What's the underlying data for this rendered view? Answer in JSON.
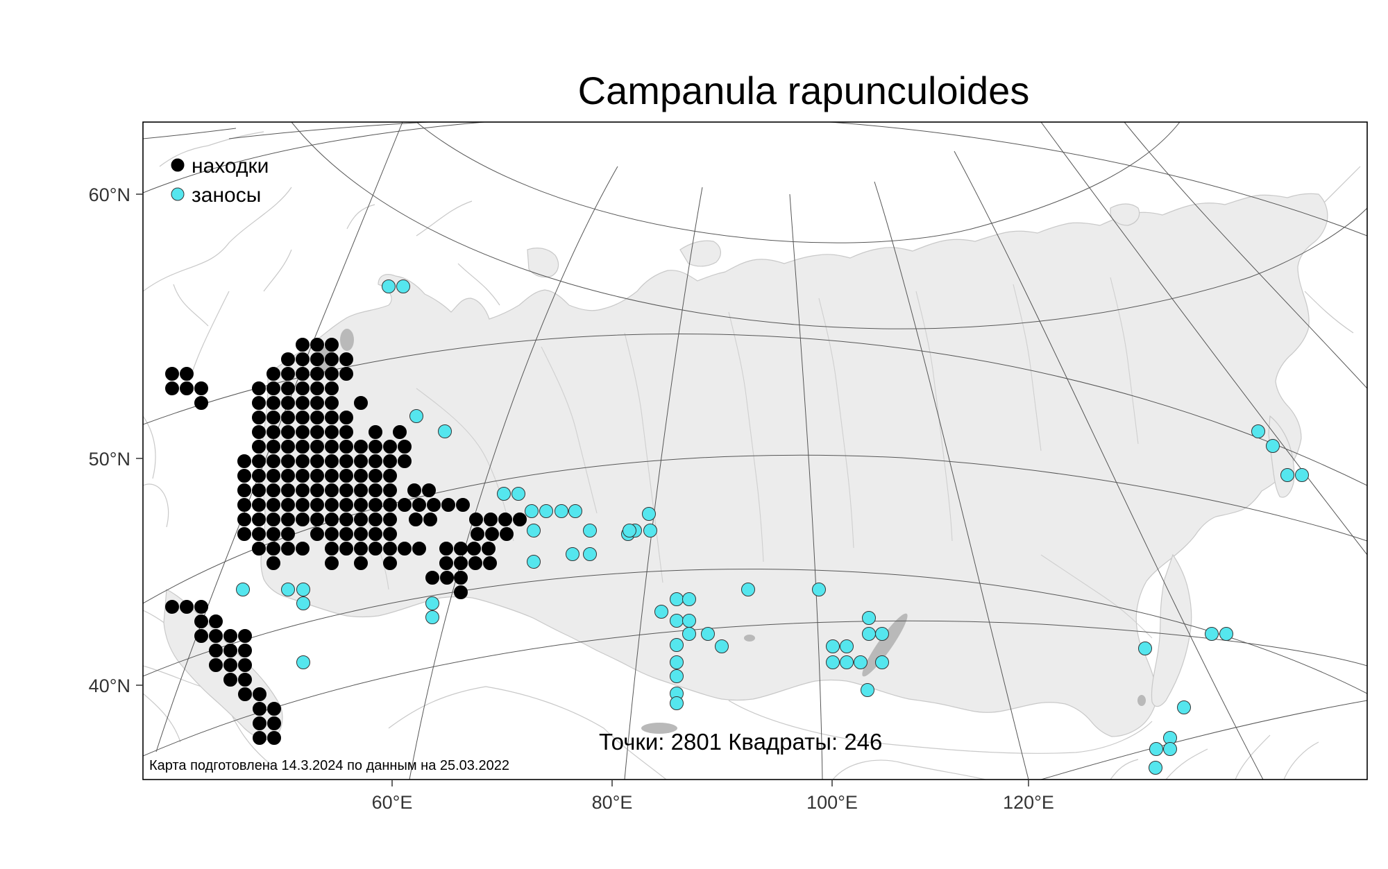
{
  "title": "Campanula rapunculoides",
  "legend": [
    {
      "label": "находки",
      "color": "#000000"
    },
    {
      "label": "заносы",
      "color": "#55e6ee"
    }
  ],
  "stats_text": "Точки: 2801 Квадраты: 246",
  "credit_text": "Карта подготовлена 14.3.2024 по данным на 25.03.2022",
  "axes": {
    "lat_labels": [
      "60°N",
      "50°N",
      "40°N"
    ],
    "lon_labels": [
      "60°E",
      "80°E",
      "100°E",
      "120°E"
    ]
  },
  "colors": {
    "native": "#000000",
    "introduced": "#55e6ee",
    "land": "#ececec",
    "lakes": "#b9b9b9"
  },
  "map_data": {
    "native_cells": [
      [
        252,
        559
      ],
      [
        273,
        538
      ],
      [
        273,
        559
      ],
      [
        294,
        559
      ],
      [
        294,
        580
      ],
      [
        381,
        538
      ],
      [
        381,
        559
      ],
      [
        381,
        580
      ],
      [
        381,
        601
      ],
      [
        381,
        622
      ],
      [
        381,
        643
      ],
      [
        381,
        664
      ],
      [
        381,
        685
      ],
      [
        381,
        706
      ],
      [
        381,
        727
      ],
      [
        381,
        748
      ],
      [
        381,
        769
      ],
      [
        402,
        538
      ],
      [
        402,
        559
      ],
      [
        402,
        580
      ],
      [
        402,
        601
      ],
      [
        402,
        622
      ],
      [
        402,
        643
      ],
      [
        402,
        664
      ],
      [
        402,
        685
      ],
      [
        402,
        706
      ],
      [
        402,
        727
      ],
      [
        402,
        748
      ],
      [
        402,
        769
      ],
      [
        402,
        790
      ],
      [
        423,
        517
      ],
      [
        423,
        538
      ],
      [
        423,
        559
      ],
      [
        423,
        580
      ],
      [
        423,
        601
      ],
      [
        423,
        622
      ],
      [
        423,
        643
      ],
      [
        423,
        664
      ],
      [
        423,
        685
      ],
      [
        423,
        706
      ],
      [
        423,
        727
      ],
      [
        423,
        748
      ],
      [
        423,
        769
      ],
      [
        423,
        790
      ],
      [
        444,
        496
      ],
      [
        444,
        517
      ],
      [
        444,
        538
      ],
      [
        444,
        559
      ],
      [
        444,
        580
      ],
      [
        444,
        601
      ],
      [
        444,
        622
      ],
      [
        444,
        643
      ],
      [
        444,
        664
      ],
      [
        444,
        685
      ],
      [
        444,
        706
      ],
      [
        444,
        727
      ],
      [
        444,
        748
      ],
      [
        465,
        496
      ],
      [
        465,
        517
      ],
      [
        465,
        538
      ],
      [
        465,
        559
      ],
      [
        465,
        580
      ],
      [
        465,
        601
      ],
      [
        465,
        622
      ],
      [
        465,
        643
      ],
      [
        465,
        664
      ],
      [
        465,
        685
      ],
      [
        465,
        706
      ],
      [
        465,
        727
      ],
      [
        465,
        748
      ],
      [
        486,
        517
      ],
      [
        486,
        538
      ],
      [
        486,
        559
      ],
      [
        486,
        580
      ],
      [
        486,
        601
      ],
      [
        486,
        622
      ],
      [
        486,
        643
      ],
      [
        486,
        664
      ],
      [
        486,
        685
      ],
      [
        486,
        706
      ],
      [
        486,
        727
      ],
      [
        486,
        748
      ],
      [
        486,
        769
      ],
      [
        507,
        538
      ],
      [
        507,
        559
      ],
      [
        507,
        580
      ],
      [
        507,
        601
      ],
      [
        507,
        622
      ],
      [
        507,
        643
      ],
      [
        507,
        664
      ],
      [
        507,
        685
      ],
      [
        507,
        706
      ],
      [
        507,
        727
      ],
      [
        507,
        748
      ],
      [
        507,
        769
      ],
      [
        528,
        601
      ],
      [
        528,
        622
      ],
      [
        528,
        643
      ],
      [
        528,
        664
      ],
      [
        528,
        685
      ],
      [
        528,
        706
      ],
      [
        528,
        727
      ],
      [
        528,
        748
      ],
      [
        528,
        769
      ],
      [
        549,
        643
      ],
      [
        549,
        664
      ],
      [
        549,
        685
      ],
      [
        549,
        706
      ],
      [
        549,
        727
      ],
      [
        549,
        748
      ],
      [
        549,
        769
      ],
      [
        549,
        790
      ],
      [
        570,
        643
      ],
      [
        570,
        664
      ],
      [
        570,
        685
      ],
      [
        570,
        706
      ],
      [
        570,
        727
      ],
      [
        570,
        748
      ],
      [
        570,
        769
      ],
      [
        591,
        664
      ],
      [
        591,
        685
      ],
      [
        591,
        706
      ],
      [
        591,
        727
      ],
      [
        591,
        748
      ],
      [
        591,
        769
      ],
      [
        612,
        685
      ],
      [
        612,
        706
      ],
      [
        612,
        727
      ],
      [
        612,
        748
      ],
      [
        612,
        769
      ],
      [
        612,
        790
      ],
      [
        633,
        706
      ],
      [
        633,
        727
      ],
      [
        633,
        748
      ],
      [
        633,
        769
      ],
      [
        655,
        727
      ],
      [
        655,
        748
      ],
      [
        655,
        769
      ],
      [
        655,
        790
      ],
      [
        676,
        790
      ],
      [
        676,
        811
      ],
      [
        676,
        832
      ],
      [
        697,
        769
      ],
      [
        697,
        790
      ],
      [
        697,
        811
      ],
      [
        718,
        727
      ],
      [
        718,
        748
      ],
      [
        718,
        769
      ],
      [
        718,
        790
      ],
      [
        718,
        811
      ],
      [
        739,
        706
      ],
      [
        739,
        727
      ],
      [
        739,
        748
      ],
      [
        739,
        769
      ],
      [
        739,
        790
      ],
      [
        739,
        811
      ],
      [
        760,
        748
      ],
      [
        760,
        769
      ],
      [
        760,
        790
      ],
      [
        760,
        811
      ],
      [
        781,
        727
      ],
      [
        781,
        748
      ],
      [
        802,
        685
      ],
      [
        802,
        706
      ],
      [
        802,
        727
      ],
      [
        802,
        748
      ],
      [
        823,
        706
      ],
      [
        823,
        727
      ],
      [
        823,
        748
      ],
      [
        844,
        727
      ],
      [
        844,
        748
      ],
      [
        865,
        601
      ],
      [
        865,
        622
      ],
      [
        886,
        580
      ],
      [
        886,
        601
      ],
      [
        907,
        643
      ],
      [
        907,
        664
      ],
      [
        907,
        685
      ],
      [
        928,
        643
      ],
      [
        928,
        664
      ],
      [
        949,
        643
      ],
      [
        949,
        664
      ],
      [
        970,
        643
      ],
      [
        970,
        664
      ],
      [
        991,
        643
      ],
      [
        991,
        664
      ],
      [
        1012,
        643
      ],
      [
        1012,
        664
      ],
      [
        1033,
        643
      ],
      [
        1033,
        664
      ],
      [
        1054,
        643
      ],
      [
        1054,
        664
      ],
      [
        1075,
        643
      ],
      [
        1096,
        664
      ],
      [
        1117,
        643
      ],
      [
        1117,
        664
      ],
      [
        1138,
        622
      ],
      [
        1138,
        643
      ],
      [
        1159,
        622
      ],
      [
        1159,
        643
      ],
      [
        1180,
        622
      ],
      [
        1201,
        643
      ]
    ],
    "intro_cells": [
      [
        573,
        419
      ],
      [
        598,
        419
      ],
      [
        602,
        605
      ],
      [
        644,
        630
      ],
      [
        740,
        774
      ],
      [
        742,
        767
      ],
      [
        852,
        770
      ],
      [
        900,
        710
      ],
      [
        945,
        748
      ],
      [
        960,
        786
      ],
      [
        966,
        815
      ],
      [
        988,
        778
      ],
      [
        1000,
        770
      ],
      [
        1018,
        806
      ],
      [
        1036,
        852
      ],
      [
        1055,
        888
      ],
      [
        1084,
        906
      ],
      [
        1116,
        914
      ],
      [
        1141,
        922
      ],
      [
        1160,
        948
      ],
      [
        1176,
        945
      ],
      [
        1186,
        966
      ],
      [
        1196,
        986
      ],
      [
        1203,
        1008
      ],
      [
        1211,
        1024
      ],
      [
        1226,
        1043
      ],
      [
        1242,
        1060
      ],
      [
        1257,
        1074
      ],
      [
        1292,
        1069
      ],
      [
        1312,
        1061
      ],
      [
        1330,
        1075
      ],
      [
        1345,
        1060
      ],
      [
        1360,
        1048
      ],
      [
        1373,
        1035
      ],
      [
        1390,
        1000
      ],
      [
        1410,
        991
      ],
      [
        1419,
        971
      ],
      [
        1432,
        958
      ],
      [
        1447,
        946
      ],
      [
        1461,
        932
      ],
      [
        1474,
        912
      ],
      [
        1631,
        1005
      ],
      [
        1651,
        1049
      ],
      [
        1667,
        1057
      ],
      [
        1676,
        1024
      ],
      [
        1699,
        1014
      ],
      [
        1738,
        963
      ],
      [
        1754,
        1049
      ],
      [
        1771,
        1076
      ],
      [
        1793,
        1101
      ],
      [
        1803,
        1094
      ],
      [
        1815,
        1115
      ],
      [
        1835,
        1129
      ],
      [
        1847,
        1145
      ],
      [
        1870,
        1160
      ],
      [
        1897,
        1170
      ],
      [
        1910,
        1170
      ],
      [
        1900,
        1160
      ],
      [
        1920,
        1167
      ],
      [
        1935,
        1157
      ],
      [
        1950,
        1151
      ],
      [
        1958,
        1137
      ],
      [
        1972,
        1125
      ],
      [
        1978,
        1115
      ],
      [
        1985,
        1105
      ],
      [
        1992,
        1099
      ],
      [
        1998,
        1092
      ]
    ]
  }
}
